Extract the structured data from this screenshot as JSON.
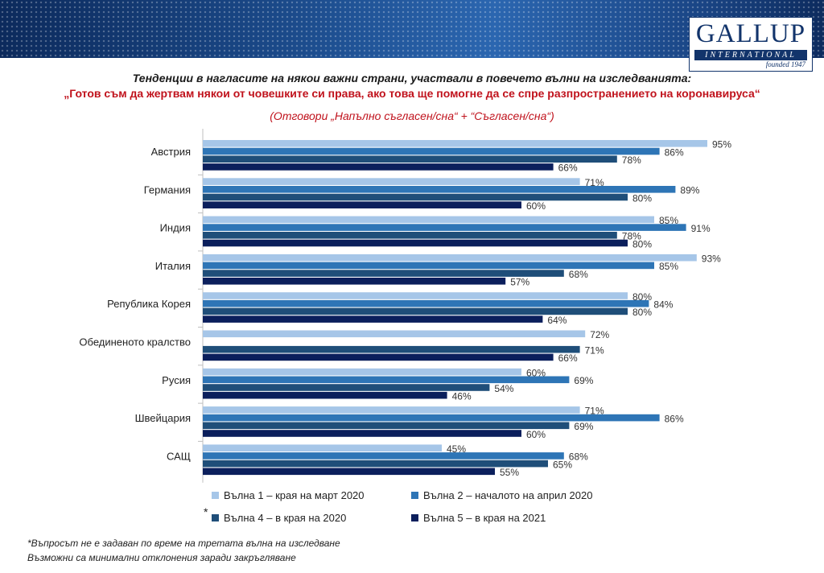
{
  "header": {
    "logo_main": "GALLUP",
    "logo_band": "INTERNATIONAL",
    "logo_founded": "founded 1947"
  },
  "colors": {
    "wave1": "#a6c6e8",
    "wave2": "#2e75b6",
    "wave4": "#1f4e79",
    "wave5": "#0b1f5c",
    "title_red": "#c0121c",
    "axis": "#bfbfbf"
  },
  "chart_data": {
    "type": "bar",
    "orientation": "horizontal",
    "title": "Тенденции в нагласите на някои важни страни, участвали в повечето вълни на изследванията:",
    "subtitle": "„Готов съм да жертвам някои от човешките си права, ако това ще помогне да се спре разпространението на коронавируса“",
    "subtitle2": "(Отговори „Напълно съгласен/сна“ + “Съгласен/сна“)",
    "categories": [
      "Австрия",
      "Германия",
      "Индия",
      "Италия",
      "Република Корея",
      "Обединеното кралство",
      "Русия",
      "Швейцария",
      "САЩ"
    ],
    "series": [
      {
        "name": "Вълна 1 – края на март 2020",
        "values": [
          95,
          71,
          85,
          93,
          80,
          72,
          60,
          71,
          45
        ]
      },
      {
        "name": "Вълна 2 – началото на април 2020",
        "values": [
          86,
          89,
          91,
          85,
          84,
          null,
          69,
          86,
          68
        ]
      },
      {
        "name": "Вълна 4 – в края на 2020",
        "values": [
          78,
          80,
          78,
          68,
          80,
          71,
          54,
          69,
          65
        ]
      },
      {
        "name": "Вълна 5 – в края на 2021",
        "values": [
          66,
          60,
          80,
          57,
          64,
          66,
          46,
          60,
          55
        ]
      }
    ],
    "value_suffix": "%",
    "xlim": [
      0,
      100
    ],
    "legend_position": "bottom",
    "grid": false
  },
  "legend_marker": "*",
  "notes": {
    "note1": "*Въпросът не е задаван по време на третата вълна на изследване",
    "note2": "Възможни са минимални отклонения заради закръгляване"
  }
}
